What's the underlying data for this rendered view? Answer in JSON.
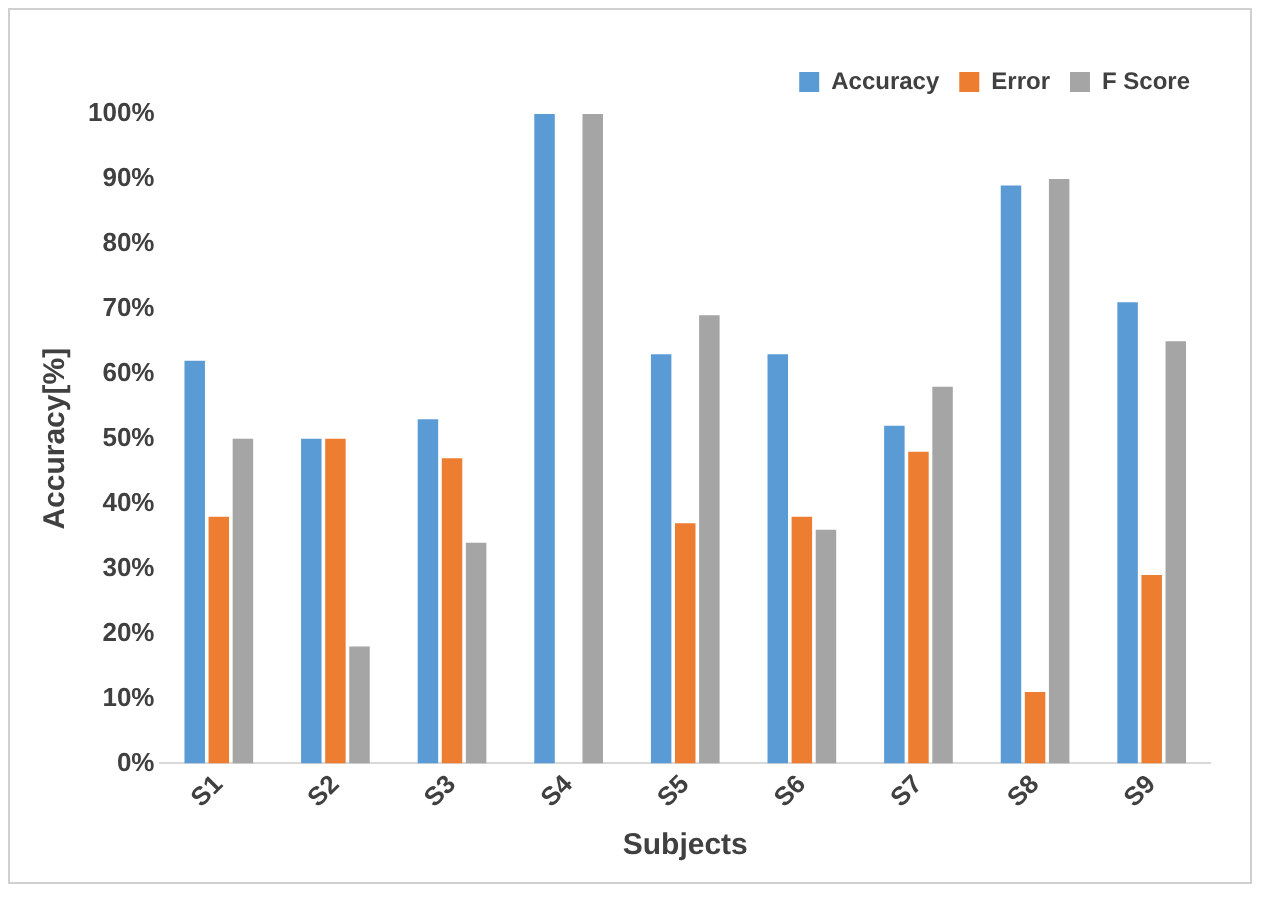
{
  "chart_data": {
    "type": "bar",
    "xlabel": "Subjects",
    "ylabel": "Accuracy[%]",
    "categories": [
      "S1",
      "S2",
      "S3",
      "S4",
      "S5",
      "S6",
      "S7",
      "S8",
      "S9"
    ],
    "series": [
      {
        "name": "Accuracy",
        "color": "#5b9bd5",
        "values": [
          62,
          50,
          53,
          100,
          63,
          63,
          52,
          89,
          71
        ]
      },
      {
        "name": "Error",
        "color": "#ed7d31",
        "values": [
          38,
          50,
          47,
          0,
          37,
          38,
          48,
          11,
          29
        ]
      },
      {
        "name": "F Score",
        "color": "#a5a5a5",
        "values": [
          50,
          18,
          34,
          100,
          69,
          36,
          58,
          90,
          65
        ]
      }
    ],
    "ylim": [
      0,
      100
    ],
    "yticks": [
      {
        "value": 0,
        "label": "0%"
      },
      {
        "value": 10,
        "label": "10%"
      },
      {
        "value": 20,
        "label": "20%"
      },
      {
        "value": 30,
        "label": "30%"
      },
      {
        "value": 40,
        "label": "40%"
      },
      {
        "value": 50,
        "label": "50%"
      },
      {
        "value": 60,
        "label": "60%"
      },
      {
        "value": 70,
        "label": "70%"
      },
      {
        "value": 80,
        "label": "80%"
      },
      {
        "value": 90,
        "label": "90%"
      },
      {
        "value": 100,
        "label": "100%"
      }
    ],
    "grid": false,
    "legend": "top right"
  }
}
